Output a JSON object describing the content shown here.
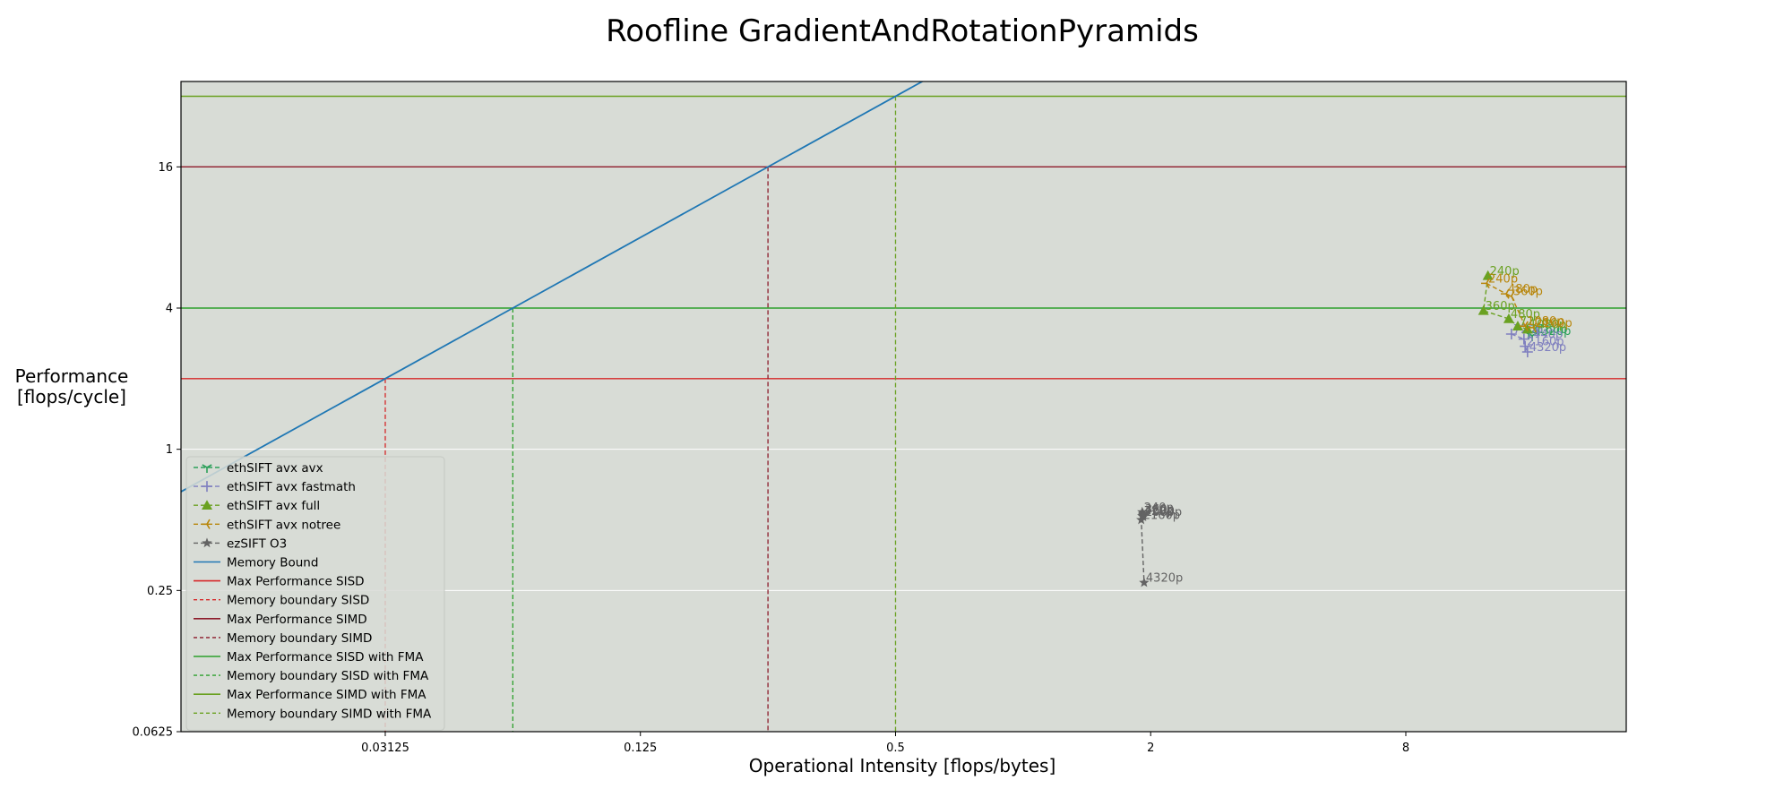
{
  "chart_data": {
    "type": "line",
    "title": "Roofline GradientAndRotationPyramids",
    "xlabel": "Operational Intensity [flops/bytes]",
    "ylabel": [
      "Performance",
      "[flops/cycle]"
    ],
    "xscale": "log2",
    "yscale": "log2",
    "xlim": [
      0.0103,
      26.5
    ],
    "ylim": [
      0.0625,
      37
    ],
    "xticks": [
      {
        "value": 0.03125,
        "label": "0.03125"
      },
      {
        "value": 0.125,
        "label": "0.125"
      },
      {
        "value": 0.5,
        "label": "0.5"
      },
      {
        "value": 2,
        "label": "2"
      },
      {
        "value": 8,
        "label": "8"
      }
    ],
    "yticks": [
      {
        "value": 0.0625,
        "label": "0.0625"
      },
      {
        "value": 0.25,
        "label": "0.25"
      },
      {
        "value": 1,
        "label": "1"
      },
      {
        "value": 4,
        "label": "4"
      },
      {
        "value": 16,
        "label": "16"
      }
    ],
    "background": "#d8dcd6",
    "grid": "horizontal",
    "legend_position": "lower-left",
    "roofline": {
      "memory_bound": {
        "name": "Memory Bound",
        "color": "#1f77b4",
        "bytes_per_cycle": 64
      },
      "ceilings": [
        {
          "name": "Max Performance SISD",
          "boundary_name": "Memory boundary SISD",
          "value": 2,
          "color": "#d62728"
        },
        {
          "name": "Max Performance SIMD",
          "boundary_name": "Memory boundary SIMD",
          "value": 16,
          "color": "#8c1a2a"
        },
        {
          "name": "Max Performance SISD with FMA",
          "boundary_name": "Memory boundary SISD with FMA",
          "value": 4,
          "color": "#2ca02c"
        },
        {
          "name": "Max Performance SIMD with FMA",
          "boundary_name": "Memory boundary SIMD with FMA",
          "value": 32,
          "color": "#6aa121"
        }
      ]
    },
    "series": [
      {
        "name": "ethSIFT avx avx",
        "color": "#2ca05a",
        "marker": "tri_down",
        "points": [
          {
            "x": 15.6,
            "y": 3.1,
            "label": "2160p"
          },
          {
            "x": 15.9,
            "y": 3.05,
            "label": "4320p"
          }
        ]
      },
      {
        "name": "ethSIFT avx fastmath",
        "color": "#7f7fbf",
        "marker": "plus",
        "points": [
          {
            "x": 14.2,
            "y": 3.1,
            "label": "720p"
          },
          {
            "x": 15.2,
            "y": 2.95,
            "label": "1440p"
          },
          {
            "x": 15.3,
            "y": 2.75,
            "label": "2160p"
          },
          {
            "x": 15.5,
            "y": 2.6,
            "label": "4320p"
          }
        ]
      },
      {
        "name": "ethSIFT avx full",
        "color": "#6aa121",
        "marker": "triangle",
        "points": [
          {
            "x": 12.5,
            "y": 5.5,
            "label": "240p"
          },
          {
            "x": 12.2,
            "y": 3.9,
            "label": "360p"
          },
          {
            "x": 14.0,
            "y": 3.6,
            "label": "480p"
          },
          {
            "x": 14.7,
            "y": 3.35,
            "label": "720p"
          },
          {
            "x": 15.5,
            "y": 3.25,
            "label": "1080p"
          }
        ]
      },
      {
        "name": "ethSIFT avx notree",
        "color": "#b8860b",
        "marker": "tri_left",
        "points": [
          {
            "x": 12.4,
            "y": 5.1,
            "label": "240p"
          },
          {
            "x": 13.8,
            "y": 4.6,
            "label": "480p"
          },
          {
            "x": 14.2,
            "y": 4.5,
            "label": "360p"
          },
          {
            "x": 15.3,
            "y": 3.35,
            "label": "1080p"
          },
          {
            "x": 16.0,
            "y": 3.3,
            "label": "2160p"
          }
        ]
      },
      {
        "name": "ezSIFT O3",
        "color": "#636363",
        "marker": "star",
        "points": [
          {
            "x": 1.91,
            "y": 0.54,
            "label": "240p"
          },
          {
            "x": 1.92,
            "y": 0.53,
            "label": "360p"
          },
          {
            "x": 1.92,
            "y": 0.525,
            "label": "480p"
          },
          {
            "x": 1.91,
            "y": 0.52,
            "label": "720p"
          },
          {
            "x": 1.92,
            "y": 0.515,
            "label": "1080p"
          },
          {
            "x": 1.9,
            "y": 0.5,
            "label": "2160p"
          },
          {
            "x": 1.93,
            "y": 0.27,
            "label": "4320p"
          }
        ]
      }
    ]
  }
}
